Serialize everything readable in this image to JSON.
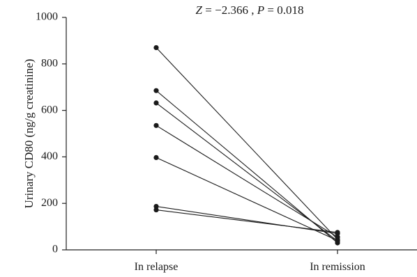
{
  "chart_data": {
    "type": "line",
    "categories": [
      "In relapse",
      "In remission"
    ],
    "ylabel": "Urinary CD80 (ng/g creatinine)",
    "ylim": [
      0,
      1000
    ],
    "yticks": [
      0,
      200,
      400,
      600,
      800,
      1000
    ],
    "annotation": {
      "z_label": "Z",
      "z_value": "−2.366",
      "separator": ", ",
      "p_label": "P",
      "p_value": "0.018"
    },
    "series": [
      {
        "values": [
          870,
          45
        ]
      },
      {
        "values": [
          685,
          30
        ]
      },
      {
        "values": [
          632,
          38
        ]
      },
      {
        "values": [
          535,
          55
        ]
      },
      {
        "values": [
          397,
          40
        ]
      },
      {
        "values": [
          187,
          70
        ]
      },
      {
        "values": [
          172,
          75
        ]
      }
    ]
  }
}
